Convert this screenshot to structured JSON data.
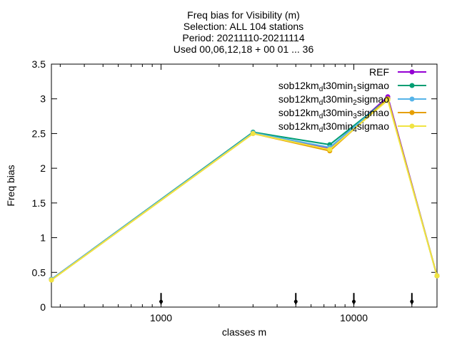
{
  "chart_data": {
    "type": "line",
    "title_lines": [
      "Freq bias  for Visibility (m)",
      "Selection: ALL     104 stations",
      "Period: 20211110-20211114",
      "Used 00,06,12,18 + 00 01 ... 36"
    ],
    "xlabel": "classes m",
    "ylabel": "Freq bias",
    "x_scale": "log",
    "xlim": [
      270,
      27000
    ],
    "ylim": [
      0,
      3.5
    ],
    "x_ticks": [
      {
        "value": 1000,
        "label": "1000"
      },
      {
        "value": 10000,
        "label": "10000"
      }
    ],
    "y_ticks": [
      {
        "value": 0,
        "label": "0"
      },
      {
        "value": 0.5,
        "label": "0.5"
      },
      {
        "value": 1,
        "label": "1"
      },
      {
        "value": 1.5,
        "label": "1.5"
      },
      {
        "value": 2,
        "label": "2"
      },
      {
        "value": 2.5,
        "label": "2.5"
      },
      {
        "value": 3,
        "label": "3"
      },
      {
        "value": 3.5,
        "label": "3.5"
      }
    ],
    "grid": false,
    "legend_position": "top-right",
    "x": [
      270,
      3000,
      7500,
      15000,
      27000
    ],
    "series": [
      {
        "name": "REF",
        "base": "REF",
        "sub": "",
        "tail": "",
        "color": "#9400d3",
        "values": [
          0.4,
          2.51,
          2.29,
          3.03,
          0.45
        ]
      },
      {
        "name": "sob12km_dt30min_1sigmao",
        "base": "sob12km",
        "sub": "d",
        "tail": "t30min",
        "sub2": "1",
        "end": "sigmao",
        "color": "#009e73",
        "values": [
          0.4,
          2.52,
          2.34,
          3.0,
          0.45
        ]
      },
      {
        "name": "sob12km_dt30min_2sigmao",
        "base": "sob12km",
        "sub": "d",
        "tail": "t30min",
        "sub2": "2",
        "end": "sigmao",
        "color": "#56b4e9",
        "values": [
          0.4,
          2.51,
          2.3,
          3.0,
          0.45
        ]
      },
      {
        "name": "sob12km_dt30min_3sigmao",
        "base": "sob12km",
        "sub": "d",
        "tail": "t30min",
        "sub2": "3",
        "end": "sigmao",
        "color": "#e69f00",
        "values": [
          0.39,
          2.5,
          2.25,
          3.0,
          0.45
        ]
      },
      {
        "name": "sob12km_dt30min_4sigmao",
        "base": "sob12km",
        "sub": "d",
        "tail": "t30min",
        "sub2": "4",
        "end": "sigmao",
        "color": "#f0e442",
        "values": [
          0.39,
          2.5,
          2.27,
          2.98,
          0.45
        ]
      }
    ],
    "markers_x": [
      1000,
      5000,
      10000,
      20000
    ],
    "markers_y": 0.08
  }
}
